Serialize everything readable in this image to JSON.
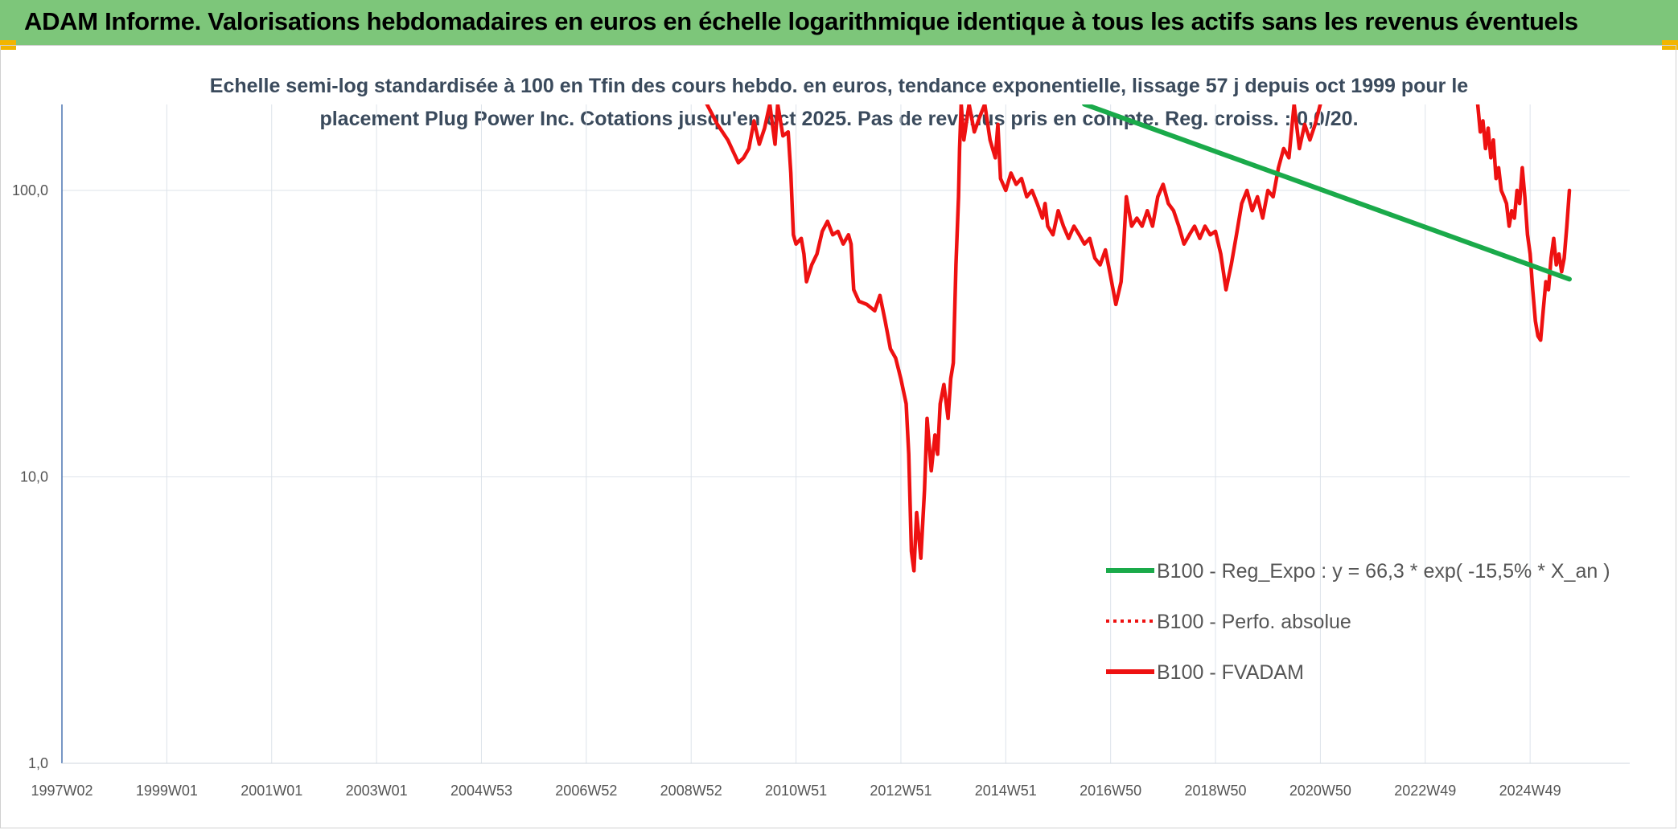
{
  "header": {
    "title": "ADAM Informe. Valorisations hebdomadaires en euros en échelle logarithmique identique à tous les actifs sans les revenus éventuels"
  },
  "colors": {
    "header_bg": "#7dc67a",
    "corner_accent": "#f2b500",
    "fvadam": "#ee1111",
    "reg_expo": "#1aaa4a",
    "perfo": "#ee1111"
  },
  "chart_data": {
    "type": "line",
    "title": "",
    "subtitle_lines": [
      "Echelle semi-log standardisée à 100 en Tfin des cours hebdo. en euros, tendance exponentielle, lissage 57 j depuis oct 1999 pour le",
      "placement Plug Power Inc. Cotations jusqu'en oct 2025. Pas de revenus pris en compte. Reg. croiss. : 0,0/20."
    ],
    "y_scale": "log",
    "ylim": [
      1,
      200
    ],
    "y_ticks": [
      {
        "value": 1,
        "label": "1,0"
      },
      {
        "value": 10,
        "label": "10,0"
      },
      {
        "value": 100,
        "label": "100,0"
      }
    ],
    "x_ticks": [
      "1997W02",
      "1999W01",
      "2001W01",
      "2003W01",
      "2004W53",
      "2006W52",
      "2008W52",
      "2010W51",
      "2012W51",
      "2014W51",
      "2016W50",
      "2018W50",
      "2020W50",
      "2022W49",
      "2024W49"
    ],
    "grid": true,
    "legend_position": "bottom-right",
    "legend": [
      {
        "label": "B100 - Reg_Expo : y = 66,3 * exp( -15,5% *  X_an )",
        "style": "solid",
        "color": "#1aaa4a"
      },
      {
        "label": "B100 - Perfo. absolue",
        "style": "dotted",
        "color": "#ee1111"
      },
      {
        "label": "B100 - FVADAM",
        "style": "solid",
        "color": "#ee1111"
      }
    ],
    "series": [
      {
        "name": "B100 - FVADAM",
        "color": "#ee1111",
        "points": [
          [
            2009.3,
            200
          ],
          [
            2009.5,
            170
          ],
          [
            2009.7,
            150
          ],
          [
            2009.9,
            125
          ],
          [
            2010.0,
            130
          ],
          [
            2010.1,
            140
          ],
          [
            2010.2,
            175
          ],
          [
            2010.3,
            145
          ],
          [
            2010.4,
            165
          ],
          [
            2010.5,
            200
          ],
          [
            2010.55,
            170
          ],
          [
            2010.6,
            145
          ],
          [
            2010.65,
            200
          ],
          [
            2010.75,
            155
          ],
          [
            2010.85,
            160
          ],
          [
            2010.9,
            115
          ],
          [
            2010.95,
            70
          ],
          [
            2011.0,
            65
          ],
          [
            2011.1,
            68
          ],
          [
            2011.15,
            60
          ],
          [
            2011.2,
            48
          ],
          [
            2011.3,
            55
          ],
          [
            2011.4,
            60
          ],
          [
            2011.5,
            72
          ],
          [
            2011.6,
            78
          ],
          [
            2011.7,
            70
          ],
          [
            2011.8,
            72
          ],
          [
            2011.9,
            65
          ],
          [
            2012.0,
            70
          ],
          [
            2012.05,
            65
          ],
          [
            2012.1,
            45
          ],
          [
            2012.2,
            41
          ],
          [
            2012.35,
            40
          ],
          [
            2012.5,
            38
          ],
          [
            2012.6,
            43
          ],
          [
            2012.7,
            35
          ],
          [
            2012.8,
            28
          ],
          [
            2012.9,
            26
          ],
          [
            2013.0,
            22
          ],
          [
            2013.1,
            18
          ],
          [
            2013.15,
            12
          ],
          [
            2013.2,
            5.5
          ],
          [
            2013.25,
            4.7
          ],
          [
            2013.3,
            7.5
          ],
          [
            2013.38,
            5.2
          ],
          [
            2013.45,
            9
          ],
          [
            2013.5,
            16
          ],
          [
            2013.58,
            10.5
          ],
          [
            2013.65,
            14
          ],
          [
            2013.7,
            12
          ],
          [
            2013.75,
            18
          ],
          [
            2013.82,
            21
          ],
          [
            2013.9,
            16
          ],
          [
            2013.95,
            22
          ],
          [
            2014.0,
            25
          ],
          [
            2014.05,
            55
          ],
          [
            2014.1,
            95
          ],
          [
            2014.12,
            140
          ],
          [
            2014.15,
            200
          ],
          [
            2014.2,
            150
          ],
          [
            2014.3,
            200
          ],
          [
            2014.4,
            160
          ],
          [
            2014.5,
            180
          ],
          [
            2014.6,
            200
          ],
          [
            2014.7,
            150
          ],
          [
            2014.8,
            130
          ],
          [
            2014.85,
            170
          ],
          [
            2014.9,
            110
          ],
          [
            2015.0,
            100
          ],
          [
            2015.1,
            115
          ],
          [
            2015.2,
            105
          ],
          [
            2015.3,
            110
          ],
          [
            2015.4,
            95
          ],
          [
            2015.5,
            100
          ],
          [
            2015.6,
            90
          ],
          [
            2015.7,
            80
          ],
          [
            2015.75,
            90
          ],
          [
            2015.8,
            75
          ],
          [
            2015.9,
            70
          ],
          [
            2016.0,
            85
          ],
          [
            2016.1,
            75
          ],
          [
            2016.2,
            68
          ],
          [
            2016.3,
            75
          ],
          [
            2016.4,
            70
          ],
          [
            2016.5,
            65
          ],
          [
            2016.6,
            68
          ],
          [
            2016.7,
            58
          ],
          [
            2016.8,
            55
          ],
          [
            2016.9,
            62
          ],
          [
            2017.0,
            50
          ],
          [
            2017.1,
            40
          ],
          [
            2017.2,
            48
          ],
          [
            2017.25,
            65
          ],
          [
            2017.3,
            95
          ],
          [
            2017.4,
            75
          ],
          [
            2017.5,
            80
          ],
          [
            2017.6,
            75
          ],
          [
            2017.7,
            85
          ],
          [
            2017.8,
            75
          ],
          [
            2017.9,
            95
          ],
          [
            2018.0,
            105
          ],
          [
            2018.1,
            90
          ],
          [
            2018.2,
            85
          ],
          [
            2018.3,
            75
          ],
          [
            2018.4,
            65
          ],
          [
            2018.5,
            70
          ],
          [
            2018.6,
            75
          ],
          [
            2018.7,
            68
          ],
          [
            2018.8,
            75
          ],
          [
            2018.9,
            70
          ],
          [
            2019.0,
            72
          ],
          [
            2019.1,
            60
          ],
          [
            2019.2,
            45
          ],
          [
            2019.3,
            55
          ],
          [
            2019.4,
            70
          ],
          [
            2019.5,
            90
          ],
          [
            2019.6,
            100
          ],
          [
            2019.7,
            85
          ],
          [
            2019.8,
            95
          ],
          [
            2019.9,
            80
          ],
          [
            2020.0,
            100
          ],
          [
            2020.1,
            95
          ],
          [
            2020.2,
            120
          ],
          [
            2020.3,
            140
          ],
          [
            2020.4,
            130
          ],
          [
            2020.5,
            200
          ],
          [
            2020.6,
            140
          ],
          [
            2020.7,
            170
          ],
          [
            2020.8,
            150
          ],
          [
            2020.9,
            170
          ],
          [
            2021.0,
            200
          ]
        ]
      },
      {
        "name": "B100 - FVADAM (2025 segment)",
        "color": "#ee1111",
        "points": [
          [
            2024.0,
            200
          ],
          [
            2024.05,
            160
          ],
          [
            2024.1,
            175
          ],
          [
            2024.15,
            140
          ],
          [
            2024.2,
            165
          ],
          [
            2024.25,
            130
          ],
          [
            2024.3,
            150
          ],
          [
            2024.35,
            110
          ],
          [
            2024.4,
            120
          ],
          [
            2024.45,
            100
          ],
          [
            2024.5,
            95
          ],
          [
            2024.55,
            90
          ],
          [
            2024.6,
            75
          ],
          [
            2024.65,
            85
          ],
          [
            2024.7,
            80
          ],
          [
            2024.75,
            100
          ],
          [
            2024.8,
            90
          ],
          [
            2024.85,
            120
          ],
          [
            2024.9,
            95
          ],
          [
            2024.95,
            70
          ],
          [
            2025.0,
            60
          ],
          [
            2025.05,
            45
          ],
          [
            2025.1,
            35
          ],
          [
            2025.15,
            31
          ],
          [
            2025.2,
            30
          ],
          [
            2025.25,
            38
          ],
          [
            2025.3,
            48
          ],
          [
            2025.35,
            45
          ],
          [
            2025.4,
            58
          ],
          [
            2025.45,
            68
          ],
          [
            2025.5,
            55
          ],
          [
            2025.55,
            60
          ],
          [
            2025.6,
            52
          ],
          [
            2025.65,
            58
          ],
          [
            2025.7,
            75
          ],
          [
            2025.75,
            100
          ]
        ]
      },
      {
        "name": "B100 - Reg_Expo : y = 66,3 * exp( -15,5% *  X_an )",
        "color": "#1aaa4a",
        "points": [
          [
            2016.5,
            200
          ],
          [
            2025.75,
            49
          ]
        ]
      }
    ]
  }
}
